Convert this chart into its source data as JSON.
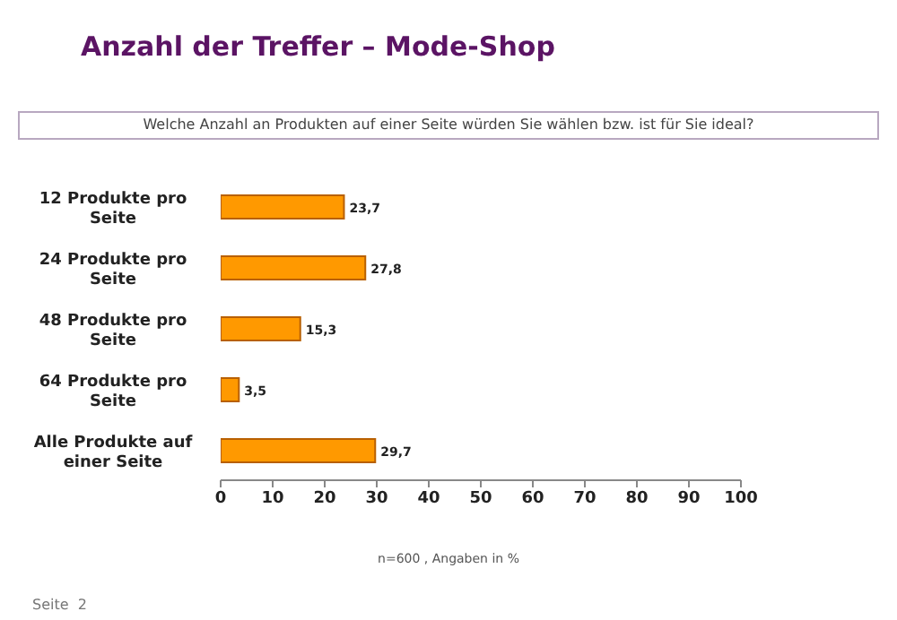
{
  "chart_data": {
    "type": "bar",
    "orientation": "horizontal",
    "title": "Anzahl der Treffer – Mode-Shop",
    "subtitle": "Welche Anzahl an Produkten auf einer Seite würden Sie wählen bzw. ist für Sie ideal?",
    "categories": [
      "12 Produkte pro Seite",
      "24 Produkte pro Seite",
      "48 Produkte pro Seite",
      "64 Produkte pro Seite",
      "Alle Produkte auf einer Seite"
    ],
    "values": [
      23.7,
      27.8,
      15.3,
      3.5,
      29.7
    ],
    "value_labels": [
      "23,7",
      "27,8",
      "15,3",
      "3,5",
      "29,7"
    ],
    "color": "#ff9900",
    "xlim": [
      0,
      100
    ],
    "xticks": [
      0,
      10,
      20,
      30,
      40,
      50,
      60,
      70,
      80,
      90,
      100
    ],
    "grid": false,
    "annotations": [
      "n=600 , Angaben in %",
      "Seite  2"
    ]
  }
}
